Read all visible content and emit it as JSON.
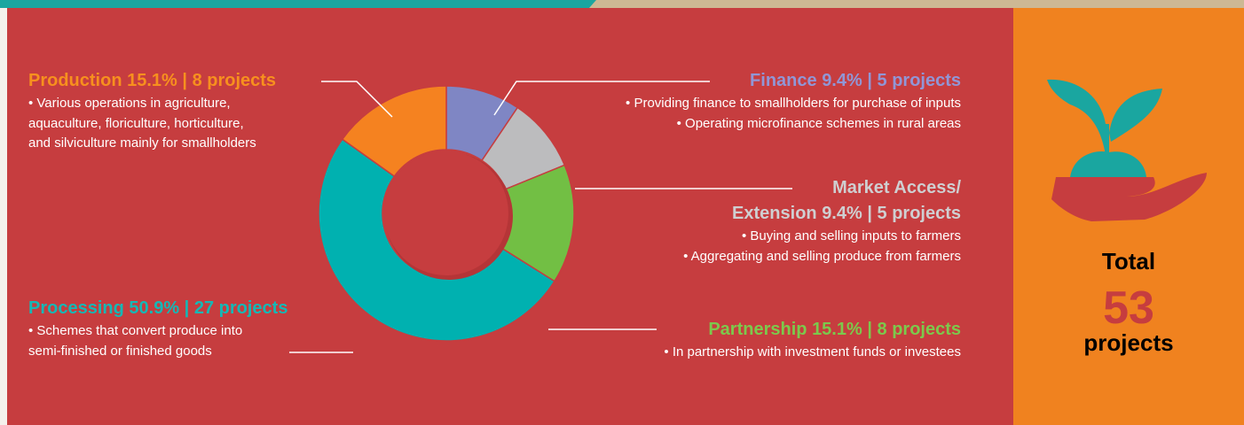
{
  "chart_data": {
    "type": "pie",
    "donut": true,
    "categories": [
      "Finance",
      "Market Access/\nExtension",
      "Partnership",
      "Processing",
      "Production"
    ],
    "values": [
      9.4,
      9.4,
      15.1,
      50.9,
      15.1
    ],
    "value_labels": [
      "9.4%",
      "9.4%",
      "15.1%",
      "50.9%",
      "15.1%"
    ],
    "projects": [
      5,
      5,
      8,
      27,
      8
    ],
    "project_labels": [
      "5 projects",
      "5 projects",
      "8 projects",
      "27 projects",
      "8 projects"
    ],
    "separator": "|",
    "colors": [
      "#7f86c4",
      "#bcbcbe",
      "#72bf44",
      "#00b1b0",
      "#f58220"
    ],
    "label_colors": [
      "#9196d6",
      "#cfcfd1",
      "#7cc94c",
      "#14b8b6",
      "#f7901e"
    ],
    "descriptions": [
      [
        "• Providing finance to smallholders for purchase of inputs",
        "• Operating microfinance schemes in rural areas"
      ],
      [
        "• Buying and selling inputs to farmers",
        "• Aggregating and selling produce from farmers"
      ],
      [
        "• In partnership with investment funds or investees"
      ],
      [
        "• Schemes that convert produce into",
        "semi-finished or finished goods"
      ],
      [
        "• Various operations in agriculture,",
        "aquaculture, floriculture, horticulture,",
        "and silviculture mainly for smallholders"
      ]
    ]
  },
  "total": {
    "label": "Total",
    "value": 53,
    "unit": "projects"
  }
}
